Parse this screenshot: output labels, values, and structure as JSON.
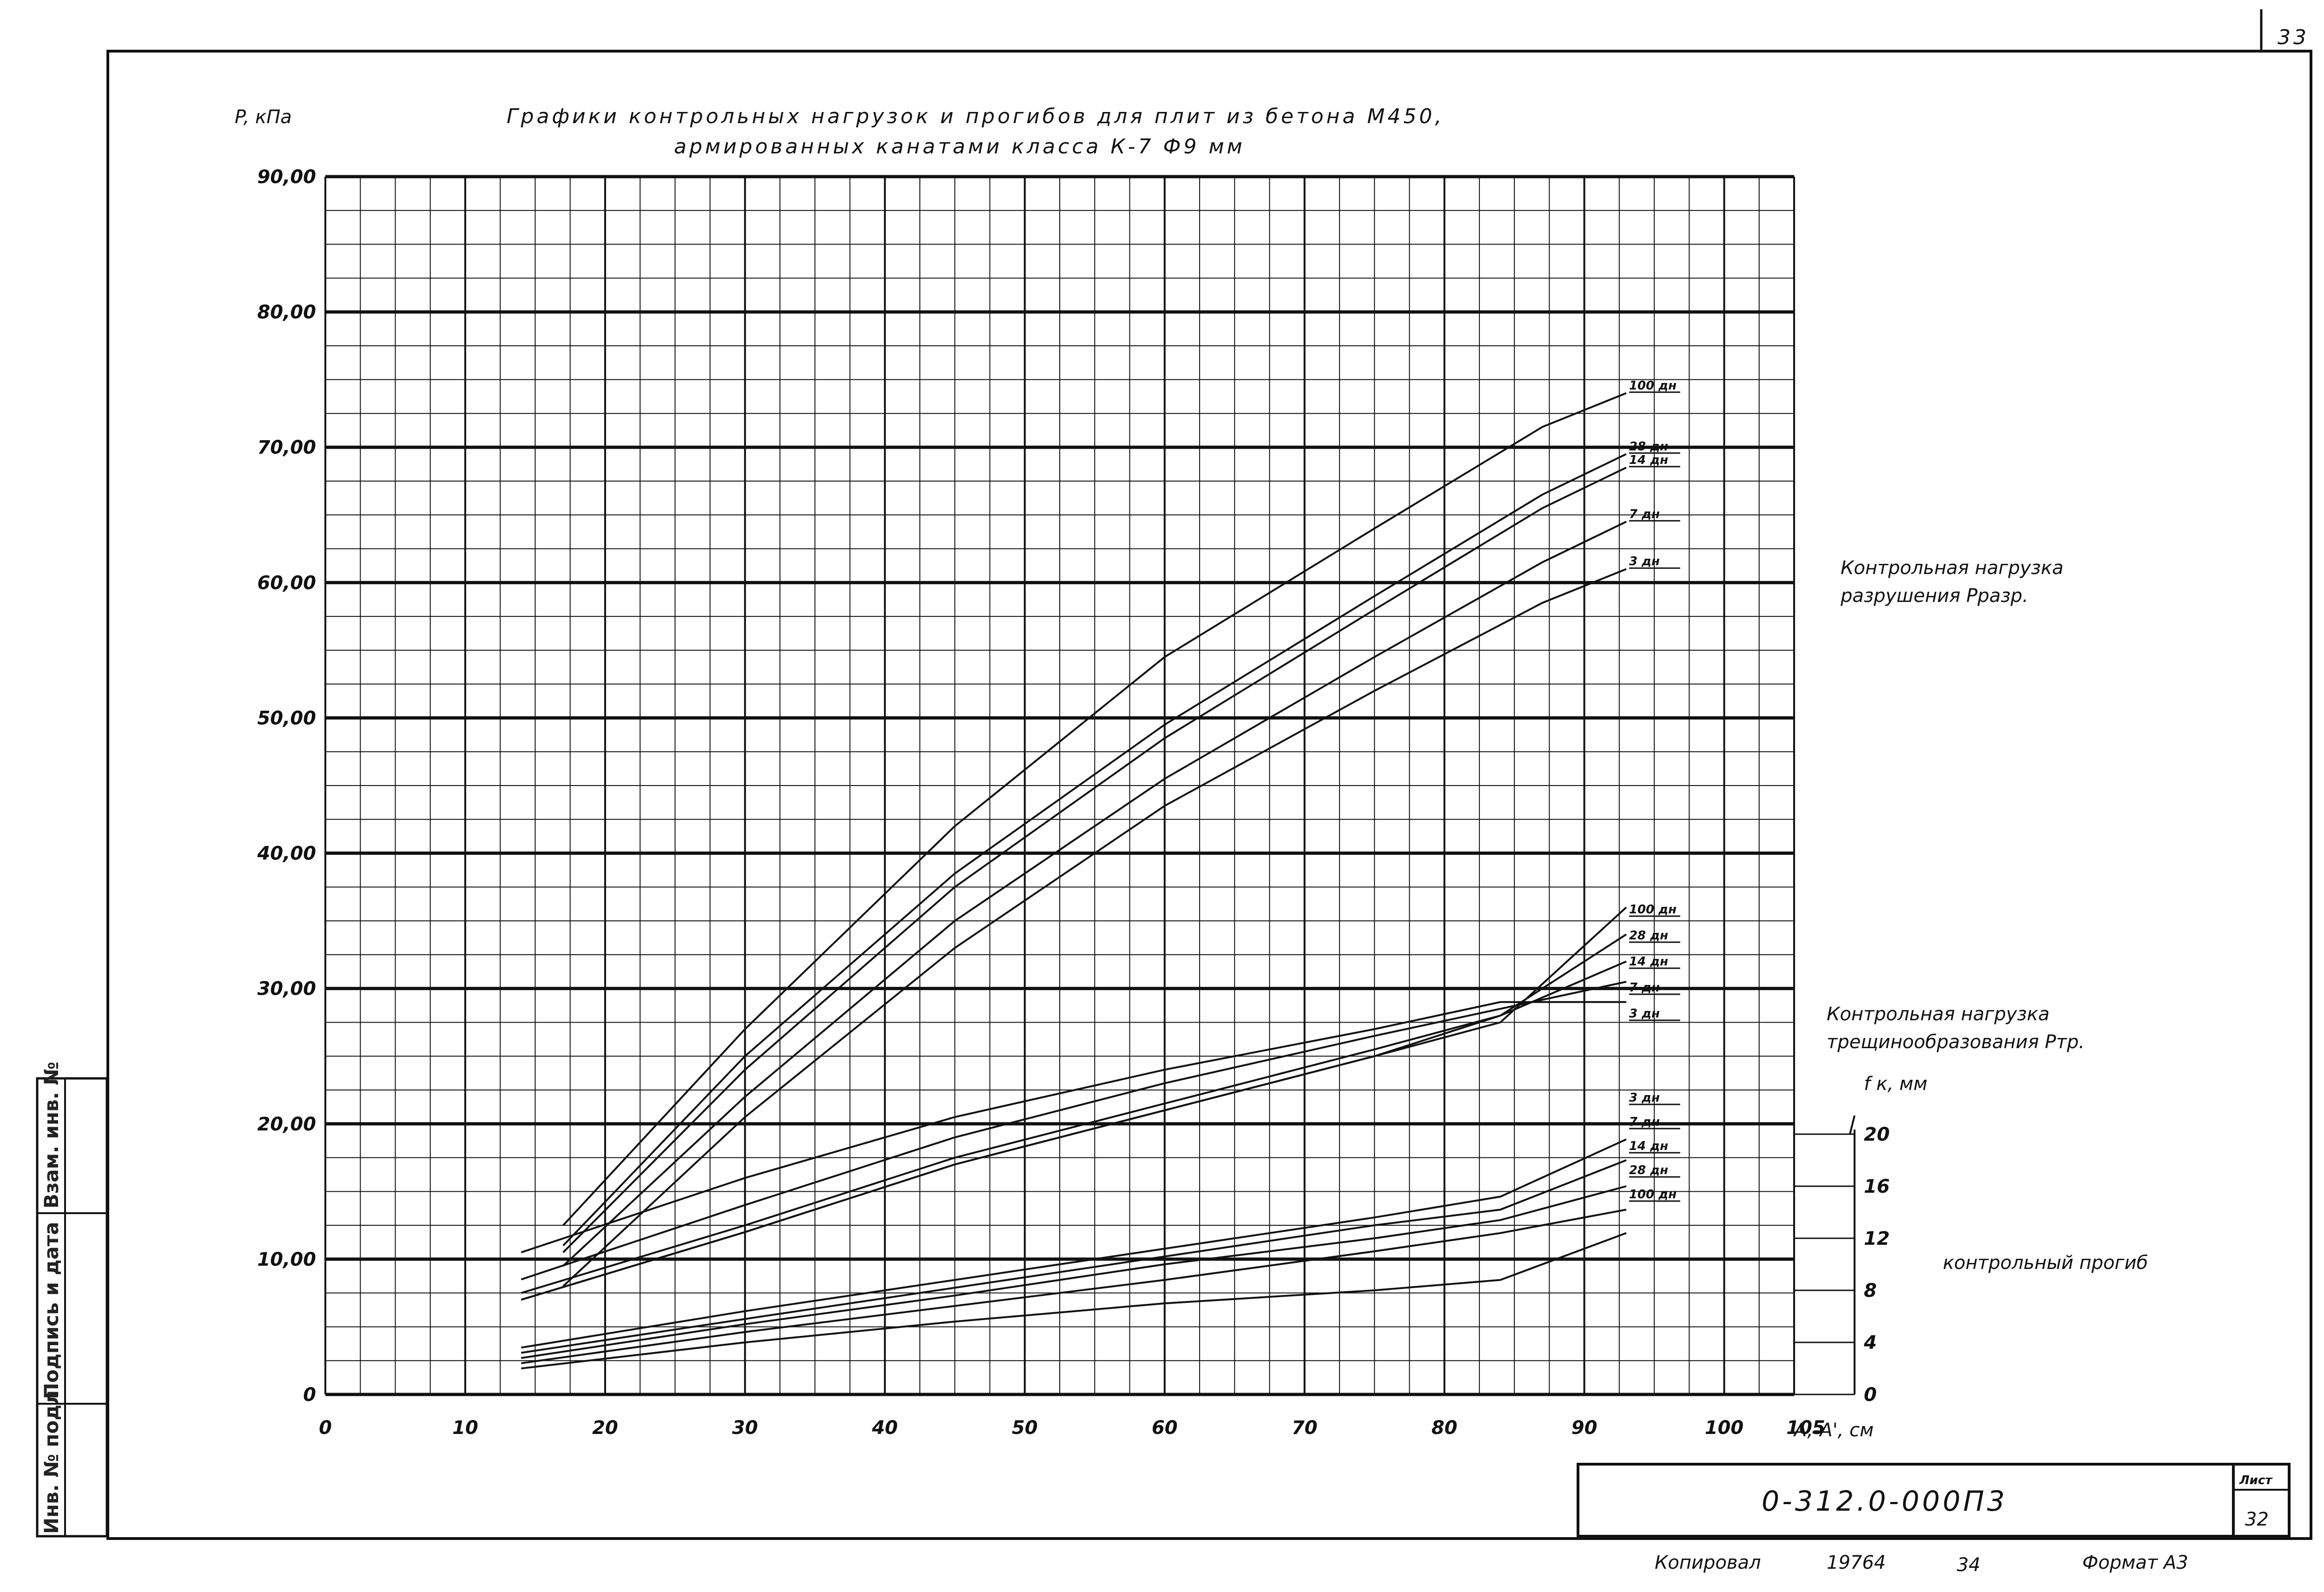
{
  "page": {
    "number": "33",
    "sheet": "32",
    "sheet_label": "Лист"
  },
  "title": {
    "line1": "Графики контрольных нагрузок и прогибов для плит из бетона М450,",
    "line2": "армированных канатами класса К-7 Ф9 мм"
  },
  "axes": {
    "y_label": "P, кПа",
    "x_label": "A,-A', см",
    "y2_label": "f к, мм",
    "y_ticks": [
      "0",
      "10,00",
      "20,00",
      "30,00",
      "40,00",
      "50,00",
      "60,00",
      "70,00",
      "80,00",
      "90,00"
    ],
    "x_ticks": [
      "0",
      "10",
      "20",
      "30",
      "40",
      "50",
      "60",
      "70",
      "80",
      "90",
      "100",
      "105"
    ],
    "y2_ticks": [
      "0",
      "4",
      "8",
      "12",
      "16",
      "20"
    ]
  },
  "annotations": {
    "break_load": [
      "Контрольная нагрузка",
      "разрушения Рразр."
    ],
    "crack_load": [
      "Контрольная нагрузка",
      "трещинообразования Ртр."
    ],
    "deflection": "контрольный прогиб"
  },
  "stamp": {
    "code": "0-312.0-000П3",
    "copy_label": "Копировал",
    "copy_number": "19764",
    "copy_page": "34",
    "format": "Формат А3"
  },
  "side_table": [
    "Инв. № подл.",
    "Подпись и дата",
    "Взам. инв. №"
  ],
  "chart_data": {
    "type": "line",
    "title": "Графики контрольных нагрузок и прогибов для плит из бетона М450, армированных канатами класса К-7 Ф9 мм",
    "xlabel": "A,-A', см",
    "ylabel": "P, кПа",
    "y2label": "f к, мм",
    "xlim": [
      0,
      105
    ],
    "ylim": [
      0,
      90
    ],
    "y2lim": [
      0,
      20
    ],
    "grid": true,
    "groups": [
      {
        "name": "Контрольная нагрузка разрушения Рразр.",
        "axis": "left",
        "series": [
          {
            "name": "100 дн",
            "points": [
              [
                17,
                12.5
              ],
              [
                30,
                27
              ],
              [
                45,
                42
              ],
              [
                60,
                54.5
              ],
              [
                75,
                64
              ],
              [
                87,
                71.5
              ],
              [
                93,
                74
              ]
            ]
          },
          {
            "name": "28 дн",
            "points": [
              [
                17,
                11
              ],
              [
                30,
                25
              ],
              [
                45,
                38.5
              ],
              [
                60,
                49.5
              ],
              [
                75,
                59
              ],
              [
                87,
                66.5
              ],
              [
                93,
                69.5
              ]
            ]
          },
          {
            "name": "14 дн",
            "points": [
              [
                17,
                10.5
              ],
              [
                30,
                24
              ],
              [
                45,
                37.5
              ],
              [
                60,
                48.5
              ],
              [
                75,
                58
              ],
              [
                87,
                65.5
              ],
              [
                93,
                68.5
              ]
            ]
          },
          {
            "name": "7 дн",
            "points": [
              [
                17,
                9.5
              ],
              [
                30,
                22
              ],
              [
                45,
                35
              ],
              [
                60,
                45.5
              ],
              [
                75,
                54.5
              ],
              [
                87,
                61.5
              ],
              [
                93,
                64.5
              ]
            ]
          },
          {
            "name": "3 дн",
            "points": [
              [
                17,
                8
              ],
              [
                30,
                20.5
              ],
              [
                45,
                33
              ],
              [
                60,
                43.5
              ],
              [
                75,
                52
              ],
              [
                87,
                58.5
              ],
              [
                93,
                61
              ]
            ]
          }
        ]
      },
      {
        "name": "Контрольная нагрузка трещинообразования Ртр.",
        "axis": "left",
        "series": [
          {
            "name": "100 дн",
            "points": [
              [
                14,
                7
              ],
              [
                30,
                12
              ],
              [
                45,
                17
              ],
              [
                60,
                21
              ],
              [
                75,
                25
              ],
              [
                84,
                27.5
              ],
              [
                93,
                36
              ]
            ]
          },
          {
            "name": "28 дн",
            "points": [
              [
                14,
                7
              ],
              [
                30,
                12
              ],
              [
                45,
                17
              ],
              [
                60,
                21
              ],
              [
                75,
                25
              ],
              [
                84,
                28
              ],
              [
                93,
                34
              ]
            ]
          },
          {
            "name": "14 дн",
            "points": [
              [
                14,
                7.5
              ],
              [
                30,
                12.5
              ],
              [
                45,
                17.5
              ],
              [
                60,
                21.5
              ],
              [
                75,
                25.5
              ],
              [
                84,
                28
              ],
              [
                93,
                32
              ]
            ]
          },
          {
            "name": "7 дн",
            "points": [
              [
                14,
                8.5
              ],
              [
                30,
                14
              ],
              [
                45,
                19
              ],
              [
                60,
                23
              ],
              [
                75,
                26.5
              ],
              [
                84,
                28.5
              ],
              [
                93,
                30.5
              ]
            ]
          },
          {
            "name": "3 дн",
            "points": [
              [
                14,
                10.5
              ],
              [
                30,
                16
              ],
              [
                45,
                20.5
              ],
              [
                60,
                24
              ],
              [
                75,
                27
              ],
              [
                84,
                29
              ],
              [
                93,
                29
              ]
            ]
          }
        ]
      },
      {
        "name": "контрольный прогиб",
        "axis": "right",
        "series": [
          {
            "name": "3 дн",
            "points": [
              [
                14,
                3.6
              ],
              [
                30,
                6.4
              ],
              [
                45,
                8.8
              ],
              [
                60,
                11.2
              ],
              [
                75,
                13.6
              ],
              [
                84,
                15.2
              ],
              [
                93,
                19.6
              ]
            ]
          },
          {
            "name": "7 дн",
            "points": [
              [
                14,
                3.2
              ],
              [
                30,
                5.8
              ],
              [
                45,
                8.2
              ],
              [
                60,
                10.6
              ],
              [
                75,
                13
              ],
              [
                84,
                14.2
              ],
              [
                93,
                18
              ]
            ]
          },
          {
            "name": "14 дн",
            "points": [
              [
                14,
                2.8
              ],
              [
                30,
                5.4
              ],
              [
                45,
                7.6
              ],
              [
                60,
                10
              ],
              [
                75,
                12
              ],
              [
                84,
                13.4
              ],
              [
                93,
                16
              ]
            ]
          },
          {
            "name": "28 дн",
            "points": [
              [
                14,
                2.4
              ],
              [
                30,
                4.8
              ],
              [
                45,
                6.8
              ],
              [
                60,
                8.8
              ],
              [
                75,
                11
              ],
              [
                84,
                12.4
              ],
              [
                93,
                14.2
              ]
            ]
          },
          {
            "name": "100 дн",
            "points": [
              [
                14,
                2
              ],
              [
                30,
                4
              ],
              [
                45,
                5.6
              ],
              [
                60,
                7
              ],
              [
                75,
                8
              ],
              [
                84,
                8.8
              ],
              [
                93,
                12.4
              ]
            ]
          }
        ]
      }
    ]
  }
}
